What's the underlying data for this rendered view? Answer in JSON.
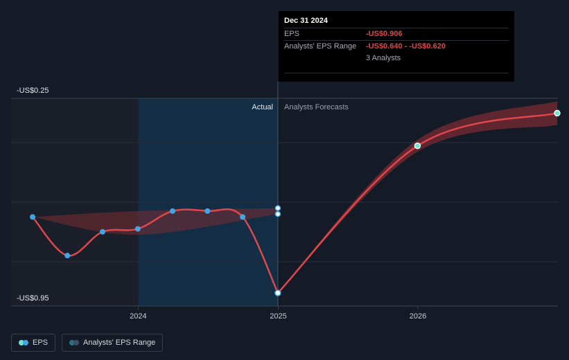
{
  "tooltip": {
    "title": "Dec 31 2024",
    "eps_label": "EPS",
    "eps_value": "-US$0.906",
    "range_label": "Analysts' EPS Range",
    "range_value": "-US$0.640 - -US$0.620",
    "analysts": "3 Analysts"
  },
  "legend": {
    "eps": "EPS",
    "range": "Analysts' EPS Range"
  },
  "colors": {
    "background": "#151b26",
    "line": "#e0474c",
    "band": "#7a2b33",
    "actual_marker": "#3fa7e6",
    "forecast_marker": "#6fe3cf",
    "actual_shade": "#12304a"
  },
  "chart_data": {
    "type": "line",
    "y_axis": {
      "top_label": "-US$0.25",
      "bottom_label": "-US$0.95",
      "ylim": [
        -0.95,
        -0.25
      ]
    },
    "x_ticks": [
      {
        "label": "2024",
        "x": "2024-01-01"
      },
      {
        "label": "2025",
        "x": "2025-01-01"
      },
      {
        "label": "2026",
        "x": "2026-01-01"
      }
    ],
    "xlim": [
      "2023-03-31",
      "2026-12-31"
    ],
    "region_labels": {
      "actual": "Actual",
      "forecast": "Analysts Forecasts"
    },
    "actual_region": [
      "2024-01-01",
      "2024-12-31"
    ],
    "series": [
      {
        "kind": "actual",
        "points": [
          {
            "x": "2023-03-31",
            "y": -0.65
          },
          {
            "x": "2023-06-30",
            "y": -0.78
          },
          {
            "x": "2023-09-30",
            "y": -0.7
          },
          {
            "x": "2023-12-31",
            "y": -0.69
          },
          {
            "x": "2024-03-31",
            "y": -0.63
          },
          {
            "x": "2024-06-30",
            "y": -0.63
          },
          {
            "x": "2024-09-30",
            "y": -0.65
          },
          {
            "x": "2024-12-31",
            "y": -0.906
          }
        ]
      },
      {
        "kind": "forecast",
        "points": [
          {
            "x": "2024-12-31",
            "y": -0.906
          },
          {
            "x": "2025-12-31",
            "y": -0.41
          },
          {
            "x": "2026-12-31",
            "y": -0.3
          }
        ]
      }
    ],
    "range_band_history": [
      {
        "x": "2023-03-31",
        "low": -0.65,
        "high": -0.65
      },
      {
        "x": "2023-12-31",
        "low": -0.71,
        "high": -0.63
      },
      {
        "x": "2024-12-31",
        "low": -0.64,
        "high": -0.62
      }
    ],
    "range_band_forecast": [
      {
        "x": "2024-12-31",
        "low": -0.906,
        "high": -0.906
      },
      {
        "x": "2025-12-31",
        "low": -0.43,
        "high": -0.39
      },
      {
        "x": "2026-12-31",
        "low": -0.34,
        "high": -0.26
      }
    ],
    "estimate_markers": [
      {
        "x": "2024-12-31",
        "y": -0.62
      },
      {
        "x": "2024-12-31",
        "y": -0.64
      }
    ],
    "grid": true,
    "legend_position": "bottom-left"
  }
}
